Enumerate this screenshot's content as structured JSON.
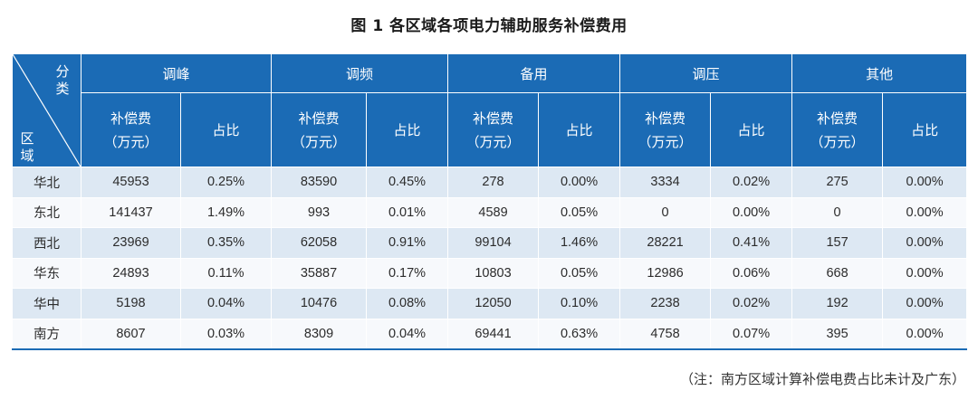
{
  "title": "图 1    各区域各项电力辅助服务补偿费用",
  "corner": {
    "top_label": "分类",
    "bottom_label": "区域"
  },
  "categories": [
    "调峰",
    "调频",
    "备用",
    "调压",
    "其他"
  ],
  "sub_headers": {
    "fee_line1": "补偿费",
    "fee_line2": "（万元）",
    "ratio": "占比"
  },
  "rows": [
    {
      "region": "华北",
      "values": [
        "45953",
        "0.25%",
        "83590",
        "0.45%",
        "278",
        "0.00%",
        "3334",
        "0.02%",
        "275",
        "0.00%"
      ]
    },
    {
      "region": "东北",
      "values": [
        "141437",
        "1.49%",
        "993",
        "0.01%",
        "4589",
        "0.05%",
        "0",
        "0.00%",
        "0",
        "0.00%"
      ]
    },
    {
      "region": "西北",
      "values": [
        "23969",
        "0.35%",
        "62058",
        "0.91%",
        "99104",
        "1.46%",
        "28221",
        "0.41%",
        "157",
        "0.00%"
      ]
    },
    {
      "region": "华东",
      "values": [
        "24893",
        "0.11%",
        "35887",
        "0.17%",
        "10803",
        "0.05%",
        "12986",
        "0.06%",
        "668",
        "0.00%"
      ]
    },
    {
      "region": "华中",
      "values": [
        "5198",
        "0.04%",
        "10476",
        "0.08%",
        "12050",
        "0.10%",
        "2238",
        "0.02%",
        "192",
        "0.00%"
      ]
    },
    {
      "region": "南方",
      "values": [
        "8607",
        "0.03%",
        "8309",
        "0.04%",
        "69441",
        "0.63%",
        "4758",
        "0.07%",
        "395",
        "0.00%"
      ]
    }
  ],
  "note": "（注：南方区域计算补偿电费占比未计及广东）",
  "colors": {
    "header_bg": "#1b6bb5",
    "row_odd": "#dde8f3",
    "row_even": "#f7f9fc"
  }
}
